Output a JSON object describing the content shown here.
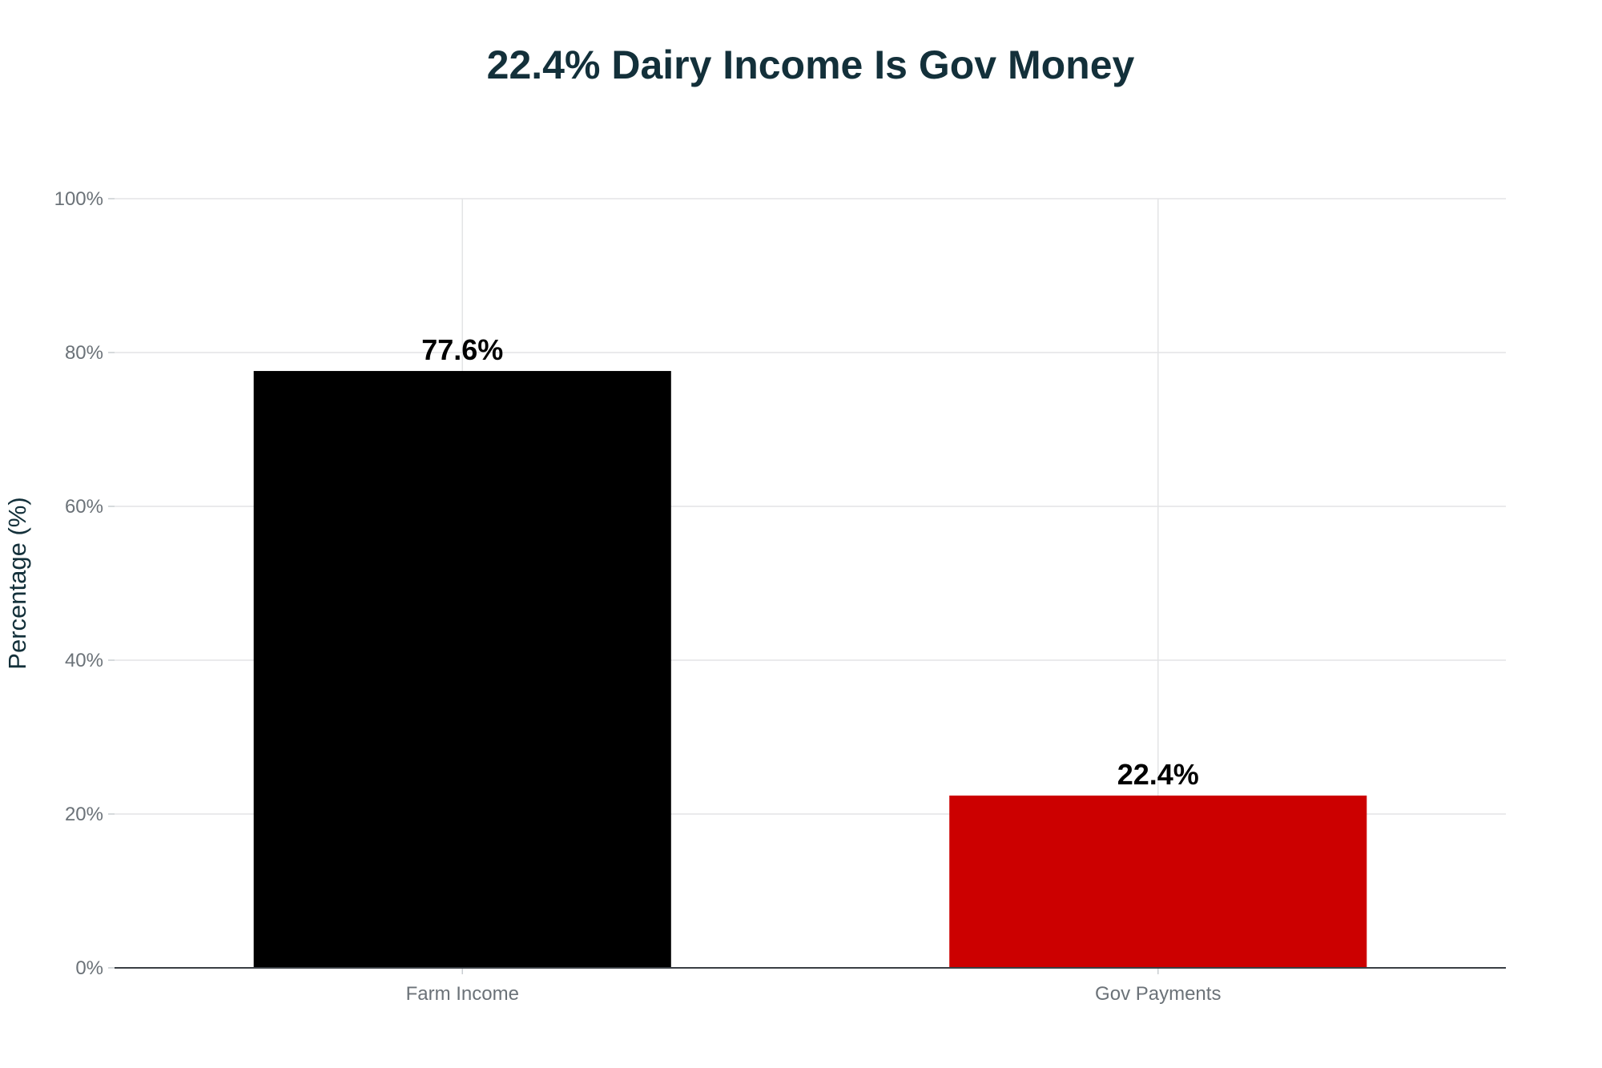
{
  "chart_data": {
    "type": "bar",
    "title": "22.4% Dairy Income Is Gov Money",
    "xlabel": "",
    "ylabel": "Percentage (%)",
    "categories": [
      "Farm Income",
      "Gov Payments"
    ],
    "values": [
      77.6,
      22.4
    ],
    "data_labels": [
      "77.6%",
      "22.4%"
    ],
    "bar_colors": [
      "#000000",
      "#cc0000"
    ],
    "ylim": [
      0,
      100
    ],
    "y_ticks": [
      0,
      20,
      40,
      60,
      80,
      100
    ],
    "y_tick_labels": [
      "0%",
      "20%",
      "40%",
      "60%",
      "80%",
      "100%"
    ],
    "grid": true,
    "legend": "none"
  }
}
